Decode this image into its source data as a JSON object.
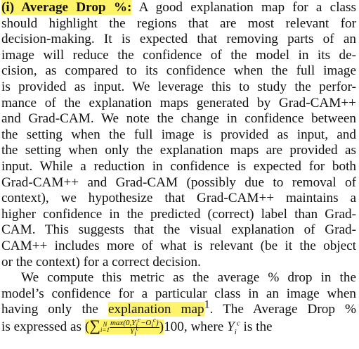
{
  "paragraphs": [
    {
      "lead": "(i) Average Drop %:",
      "lines": [
        " A good explanation map for a class",
        "should highlight the regions that are most relevant for",
        "decision-making. It is expected that removing parts of an",
        "image will reduce the confidence of the model in its de-",
        "cision, as compared to its confidence when the full image",
        "is provided as input. We leverage this to study the perfor-",
        "mance of the explanation maps generated by Grad-CAM++",
        "and Grad-CAM. We note the change in confidence between",
        "the setting when the full image is provided as input, and",
        "the setting when only the explanation maps are provided as",
        "input. While a reduction in confidence is expected for both",
        "Grad-CAM++ and Grad-CAM (possibly due to removal of",
        "context), we hypothesize that Grad-CAM++ maintains a",
        "higher confidence in the predicted (correct) label than Grad-",
        "CAM. This suggests that the visual explanation of Grad-",
        "CAM++ includes more of what is relevant (be it the object",
        "or the context) for a correct decision."
      ]
    },
    {
      "lines": [
        "We compute this metric as the average % drop in the",
        "model’s confidence for a particular class in an image when"
      ],
      "line20": {
        "before": "having only the ",
        "highlight": "explanation map",
        "footnote": "1",
        "after": ". The Average Drop %"
      },
      "line21": {
        "before": "is expressed as ",
        "formula": {
          "open": "(",
          "sum": "∑",
          "lower": "i=1",
          "upper": "N",
          "num_a": "max(0,",
          "num_y": "Y",
          "num_y_sub": "i",
          "num_y_sup": "c",
          "num_minus": "−",
          "num_o": "O",
          "num_o_sub": "i",
          "num_o_sup": "c",
          "num_close": ")",
          "den_y": "Y",
          "den_sub": "i",
          "den_sup": "c",
          "close": ")",
          "factor": "100"
        },
        "after": ", where ",
        "var": "Y",
        "var_sub": "i",
        "var_sup": "c",
        "end": " is the"
      }
    }
  ]
}
